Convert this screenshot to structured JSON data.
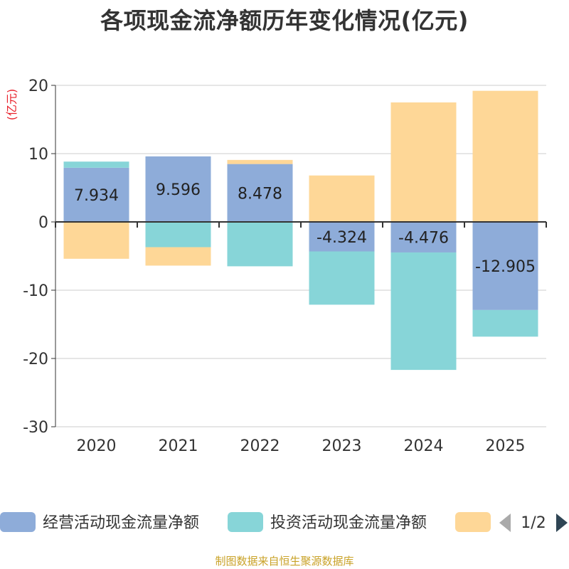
{
  "chart_data": {
    "type": "bar",
    "stacked": true,
    "title": "各项现金流净额历年变化情况(亿元)",
    "ylabel": "(亿元)",
    "ylim": [
      -30,
      20
    ],
    "yticks": [
      "20",
      "10",
      "0",
      "-10",
      "-20",
      "-30"
    ],
    "categories": [
      "2020",
      "2021",
      "2022",
      "2023",
      "2024",
      "2025"
    ],
    "series": [
      {
        "name": "经营活动现金流量净额",
        "color": "#8eacd9",
        "values": [
          7.934,
          9.596,
          8.478,
          -4.324,
          -4.476,
          -12.905
        ],
        "labels": [
          "7.934",
          "9.596",
          "8.478",
          "-4.324",
          "-4.476",
          "-12.905"
        ]
      },
      {
        "name": "投资活动现金流量净额",
        "color": "#87d5d8",
        "values": [
          0.9,
          -3.7,
          -6.5,
          -7.8,
          -17.2,
          -3.9
        ]
      },
      {
        "name": "",
        "color": "#fed797",
        "values": [
          -5.4,
          -2.7,
          0.6,
          6.8,
          17.5,
          19.2
        ]
      }
    ]
  },
  "legend": {
    "page": "1/2"
  },
  "source": "制图数据来自恒生聚源数据库"
}
